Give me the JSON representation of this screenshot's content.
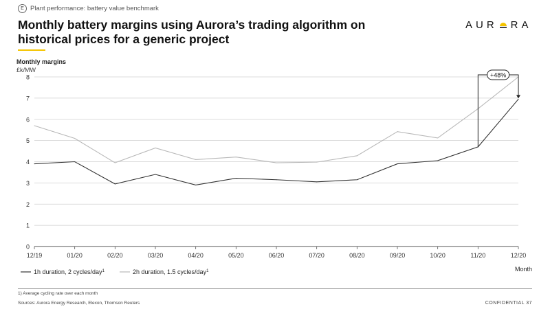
{
  "header": {
    "section_badge": "E",
    "section_label": "Plant performance: battery value benchmark",
    "title_line1": "Monthly battery margins using Aurora’s trading algorithm on",
    "title_line2": "historical prices for a generic project",
    "logo_left": "AUR",
    "logo_right": "RA"
  },
  "colors": {
    "accent": "#f5c400",
    "series1": "#333333",
    "series2": "#b8b8b8",
    "grid": "#cfcfcf"
  },
  "chart_data": {
    "type": "line",
    "ylabel": "Monthly margins",
    "yunit": "£k/MW",
    "xlabel": "Month",
    "ylim": [
      0,
      8
    ],
    "yticks": [
      "0",
      "1",
      "2",
      "3",
      "4",
      "5",
      "6",
      "7",
      "8"
    ],
    "categories": [
      "12/19",
      "01/20",
      "02/20",
      "03/20",
      "04/20",
      "05/20",
      "06/20",
      "07/20",
      "08/20",
      "09/20",
      "10/20",
      "11/20",
      "12/20"
    ],
    "series": [
      {
        "name": "1h duration, 2 cycles/day",
        "sup": "1",
        "values": [
          3.9,
          4.0,
          2.95,
          3.4,
          2.9,
          3.22,
          3.15,
          3.05,
          3.15,
          3.9,
          4.05,
          4.7,
          6.95
        ]
      },
      {
        "name": "2h duration, 1.5 cycles/day",
        "sup": "1",
        "values": [
          5.7,
          5.1,
          3.95,
          4.65,
          4.1,
          4.22,
          3.95,
          3.98,
          4.28,
          5.42,
          5.12,
          6.5,
          8.0
        ]
      }
    ],
    "annotation": {
      "label": "+48%",
      "category": "11/20"
    },
    "grid": true,
    "legend": "bottom-left"
  },
  "footer": {
    "footnote": "1) Average cycling rate over each month",
    "sources": "Sources: Aurora Energy Research, Elexon, Thomson Reuters",
    "confidential": "CONFIDENTIAL   37"
  }
}
